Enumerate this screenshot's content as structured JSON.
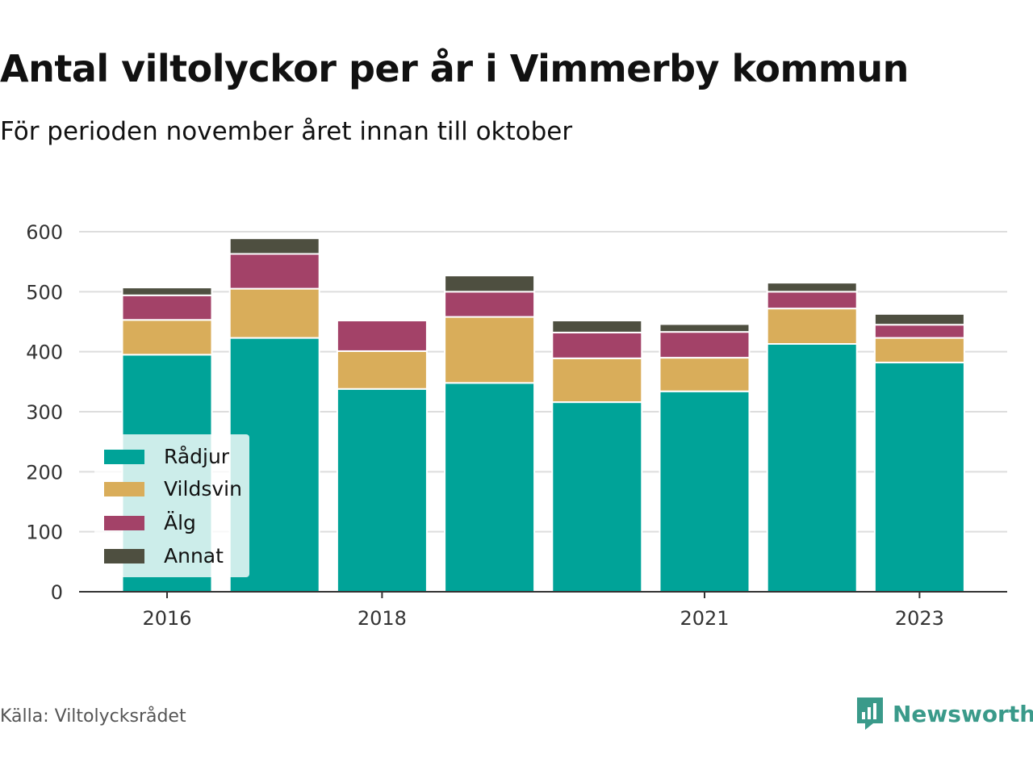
{
  "title": "Antal viltolyckor per år i Vimmerby kommun",
  "subtitle": "För perioden november året innan till oktober",
  "source": "Källa: Viltolycksrådet",
  "brand": "Newsworthy",
  "colors": {
    "Rådjur": "#00a398",
    "Vildsvin": "#d9ad5a",
    "Älg": "#a34268",
    "Annat": "#4e4f40",
    "grid": "#dddddd",
    "axis": "#333333"
  },
  "chart_data": {
    "type": "bar",
    "stacked": true,
    "categories": [
      "2016",
      "2017",
      "2018",
      "2019",
      "2020",
      "2021",
      "2022",
      "2023"
    ],
    "x_tick_labels": [
      "2016",
      "",
      "2018",
      "",
      "",
      "2021",
      "",
      "2023"
    ],
    "y_ticks": [
      "0",
      "100",
      "200",
      "300",
      "400",
      "500",
      "600"
    ],
    "ylim": [
      0,
      600
    ],
    "grid": true,
    "legend_position": "bottom-left",
    "series": [
      {
        "name": "Rådjur",
        "values": [
          395,
          423,
          338,
          348,
          316,
          334,
          413,
          382
        ]
      },
      {
        "name": "Vildsvin",
        "values": [
          58,
          82,
          63,
          110,
          73,
          56,
          59,
          41
        ]
      },
      {
        "name": "Älg",
        "values": [
          41,
          58,
          51,
          42,
          43,
          43,
          28,
          22
        ]
      },
      {
        "name": "Annat",
        "values": [
          13,
          26,
          0,
          27,
          20,
          13,
          15,
          18
        ]
      }
    ]
  }
}
